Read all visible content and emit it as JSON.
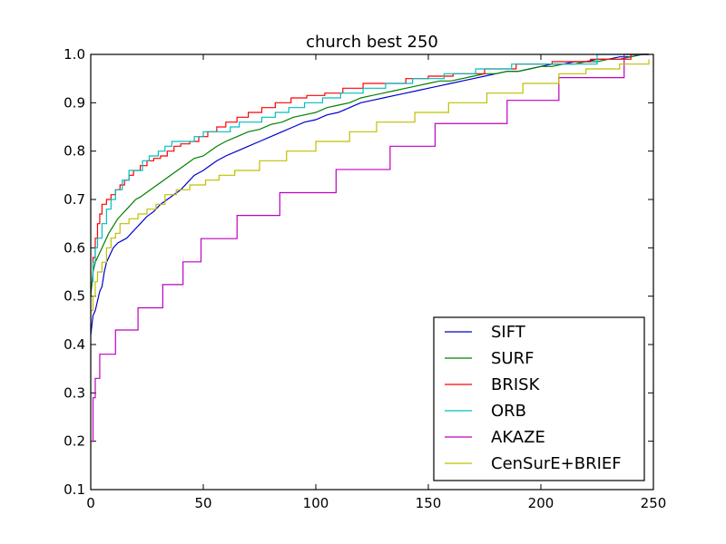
{
  "chart_data": {
    "type": "line",
    "title": "church best 250",
    "xlabel": "",
    "ylabel": "",
    "xlim": [
      0,
      250
    ],
    "ylim": [
      0.1,
      1.0
    ],
    "xticks": [
      0,
      50,
      100,
      150,
      200,
      250
    ],
    "xtick_labels": [
      "0",
      "50",
      "100",
      "150",
      "200",
      "250"
    ],
    "yticks": [
      0.1,
      0.2,
      0.3,
      0.4,
      0.5,
      0.6,
      0.7,
      0.8,
      0.9,
      1.0
    ],
    "ytick_labels": [
      "0.1",
      "0.2",
      "0.3",
      "0.4",
      "0.5",
      "0.6",
      "0.7",
      "0.8",
      "0.9",
      "1.0"
    ],
    "grid": false,
    "legend_position": "bottom-right",
    "series": [
      {
        "name": "SIFT",
        "color": "#0000cc",
        "step": false,
        "x": [
          0,
          1,
          2,
          3,
          4,
          5,
          6,
          7,
          8,
          9,
          10,
          12,
          14,
          16,
          18,
          20,
          22,
          25,
          28,
          31,
          34,
          37,
          40,
          43,
          46,
          50,
          53,
          56,
          60,
          65,
          70,
          75,
          80,
          85,
          90,
          95,
          100,
          105,
          110,
          115,
          120,
          125,
          130,
          135,
          140,
          145,
          150,
          155,
          160,
          165,
          170,
          175,
          180,
          185,
          190,
          195,
          200,
          205,
          210,
          215,
          220,
          225,
          230,
          235,
          240,
          245,
          248
        ],
        "y": [
          0.42,
          0.46,
          0.47,
          0.49,
          0.51,
          0.52,
          0.55,
          0.57,
          0.58,
          0.59,
          0.6,
          0.61,
          0.615,
          0.62,
          0.63,
          0.64,
          0.65,
          0.665,
          0.675,
          0.69,
          0.7,
          0.71,
          0.72,
          0.735,
          0.75,
          0.76,
          0.77,
          0.78,
          0.79,
          0.8,
          0.81,
          0.82,
          0.83,
          0.84,
          0.85,
          0.86,
          0.865,
          0.875,
          0.88,
          0.89,
          0.9,
          0.905,
          0.91,
          0.915,
          0.92,
          0.925,
          0.93,
          0.935,
          0.94,
          0.945,
          0.95,
          0.955,
          0.96,
          0.965,
          0.965,
          0.97,
          0.975,
          0.98,
          0.98,
          0.985,
          0.985,
          0.99,
          0.99,
          0.995,
          0.995,
          1.0,
          1.0
        ]
      },
      {
        "name": "SURF",
        "color": "#008000",
        "step": false,
        "x": [
          0,
          1,
          2,
          3,
          4,
          5,
          6,
          8,
          10,
          12,
          14,
          16,
          18,
          20,
          22,
          25,
          28,
          31,
          34,
          37,
          40,
          43,
          46,
          50,
          53,
          56,
          60,
          65,
          70,
          75,
          80,
          85,
          90,
          95,
          100,
          105,
          110,
          115,
          120,
          125,
          130,
          135,
          140,
          145,
          150,
          155,
          160,
          165,
          170,
          175,
          180,
          185,
          190,
          195,
          200,
          205,
          210,
          215,
          220,
          225,
          230,
          235,
          240,
          245,
          248
        ],
        "y": [
          0.5,
          0.55,
          0.57,
          0.58,
          0.59,
          0.6,
          0.61,
          0.63,
          0.645,
          0.66,
          0.67,
          0.68,
          0.69,
          0.7,
          0.705,
          0.715,
          0.725,
          0.735,
          0.745,
          0.755,
          0.765,
          0.775,
          0.785,
          0.79,
          0.8,
          0.81,
          0.82,
          0.83,
          0.84,
          0.845,
          0.855,
          0.86,
          0.87,
          0.875,
          0.88,
          0.89,
          0.895,
          0.9,
          0.91,
          0.915,
          0.92,
          0.925,
          0.93,
          0.935,
          0.94,
          0.945,
          0.945,
          0.95,
          0.955,
          0.96,
          0.96,
          0.965,
          0.965,
          0.97,
          0.975,
          0.975,
          0.98,
          0.98,
          0.985,
          0.985,
          0.99,
          0.99,
          0.995,
          1.0,
          1.0
        ]
      },
      {
        "name": "BRISK",
        "color": "#ff0000",
        "step": true,
        "x": [
          0,
          1,
          2,
          3,
          4,
          5,
          7,
          9,
          11,
          13,
          15,
          17,
          19,
          22,
          25,
          28,
          31,
          34,
          37,
          40,
          44,
          48,
          52,
          56,
          60,
          65,
          70,
          76,
          82,
          89,
          96,
          104,
          112,
          121,
          130,
          140,
          150,
          161,
          175,
          189,
          205,
          222,
          240,
          248
        ],
        "y": [
          0.53,
          0.58,
          0.62,
          0.65,
          0.67,
          0.69,
          0.7,
          0.71,
          0.72,
          0.73,
          0.74,
          0.75,
          0.76,
          0.77,
          0.78,
          0.785,
          0.79,
          0.8,
          0.81,
          0.815,
          0.82,
          0.83,
          0.84,
          0.85,
          0.86,
          0.87,
          0.88,
          0.89,
          0.9,
          0.91,
          0.915,
          0.92,
          0.93,
          0.94,
          0.94,
          0.95,
          0.955,
          0.96,
          0.97,
          0.98,
          0.985,
          0.99,
          1.0,
          1.0
        ]
      },
      {
        "name": "ORB",
        "color": "#00bfbf",
        "step": true,
        "x": [
          0,
          1,
          2,
          3,
          5,
          7,
          9,
          11,
          14,
          17,
          20,
          23,
          26,
          30,
          33,
          36,
          38,
          42,
          46,
          50,
          54,
          58,
          62,
          66,
          70,
          76,
          82,
          88,
          95,
          103,
          111,
          121,
          131,
          143,
          157,
          171,
          187,
          205,
          225,
          248
        ],
        "y": [
          0.53,
          0.57,
          0.6,
          0.62,
          0.65,
          0.68,
          0.7,
          0.72,
          0.74,
          0.76,
          0.76,
          0.78,
          0.79,
          0.8,
          0.81,
          0.82,
          0.82,
          0.82,
          0.83,
          0.84,
          0.84,
          0.84,
          0.85,
          0.86,
          0.86,
          0.87,
          0.88,
          0.89,
          0.9,
          0.91,
          0.92,
          0.93,
          0.94,
          0.95,
          0.96,
          0.97,
          0.98,
          0.98,
          1.0,
          1.0
        ]
      },
      {
        "name": "AKAZE",
        "color": "#bf00bf",
        "step": true,
        "x": [
          0,
          1,
          2,
          3,
          4,
          5,
          11,
          21,
          32,
          41,
          49,
          65,
          84,
          109,
          133,
          153,
          185,
          208,
          237,
          248
        ],
        "y": [
          0.2,
          0.29,
          0.33,
          0.33,
          0.38,
          0.38,
          0.43,
          0.476,
          0.524,
          0.571,
          0.619,
          0.667,
          0.714,
          0.762,
          0.81,
          0.857,
          0.905,
          0.952,
          1.0,
          1.0
        ]
      },
      {
        "name": "CenSurE+BRIEF",
        "color": "#bfbf00",
        "step": true,
        "x": [
          0,
          1,
          2,
          3,
          5,
          7,
          9,
          11,
          13,
          17,
          21,
          25,
          29,
          33,
          38,
          44,
          51,
          57,
          64,
          75,
          87,
          100,
          115,
          127,
          144,
          159,
          176,
          192,
          208,
          220,
          235,
          248
        ],
        "y": [
          0.47,
          0.5,
          0.53,
          0.55,
          0.57,
          0.6,
          0.62,
          0.63,
          0.65,
          0.66,
          0.67,
          0.68,
          0.69,
          0.71,
          0.72,
          0.73,
          0.74,
          0.75,
          0.76,
          0.78,
          0.8,
          0.82,
          0.84,
          0.86,
          0.88,
          0.9,
          0.92,
          0.94,
          0.96,
          0.97,
          0.98,
          0.99
        ]
      }
    ]
  }
}
